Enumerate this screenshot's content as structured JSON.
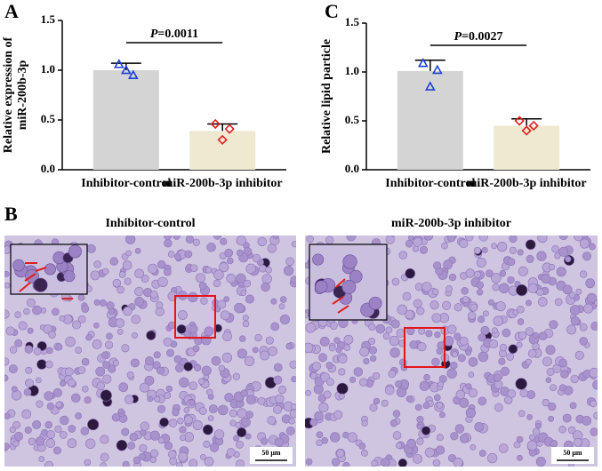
{
  "chart_data": [
    {
      "type": "bar",
      "panel": "A",
      "ylabel": [
        "Relative expression of",
        "miR-200b-3p"
      ],
      "categories": [
        "Inhibitor-control",
        "miR-200b-3p inhibitor"
      ],
      "values": [
        1.0,
        0.39
      ],
      "errors": [
        0.07,
        0.07
      ],
      "points": [
        [
          1.06,
          0.95,
          1.0
        ],
        [
          0.46,
          0.41,
          0.3
        ]
      ],
      "colors": [
        "#d4d4d4",
        "#efe9d2"
      ],
      "point_colors": [
        "#1e3fd6",
        "#e0201e"
      ],
      "markers": [
        "triangle",
        "diamond"
      ],
      "annotation": {
        "symbol": "P",
        "text": "=0.0011"
      },
      "ylim": [
        0,
        1.5
      ],
      "yticks": [
        {
          "value": 0,
          "label": "0.0"
        },
        0.5,
        {
          "value": 1,
          "label": "1.0"
        },
        1.5
      ]
    },
    {
      "type": "bar",
      "panel": "C",
      "ylabel": [
        "Relative lipid particle"
      ],
      "categories": [
        "Inhibitor-control",
        "miR-200b-3p inhibitor"
      ],
      "values": [
        1.01,
        0.45
      ],
      "errors": [
        0.11,
        0.07
      ],
      "points": [
        [
          1.09,
          1.02,
          0.85
        ],
        [
          0.5,
          0.45,
          0.4
        ]
      ],
      "colors": [
        "#d4d4d4",
        "#efe9d2"
      ],
      "point_colors": [
        "#1e3fd6",
        "#e0201e"
      ],
      "markers": [
        "triangle",
        "diamond"
      ],
      "annotation": {
        "symbol": "P",
        "text": "=0.0027"
      },
      "ylim": [
        0,
        1.5
      ],
      "yticks": [
        {
          "value": 0,
          "label": "0.0"
        },
        0.5,
        {
          "value": 1,
          "label": "1.0"
        },
        1.5
      ]
    }
  ],
  "figure": {
    "panel_b": "B",
    "images": [
      {
        "title": "Inhibitor-control",
        "scale_bar": "50 μm"
      },
      {
        "title": "miR-200b-3p inhibitor",
        "scale_bar": "50 μm"
      }
    ]
  }
}
